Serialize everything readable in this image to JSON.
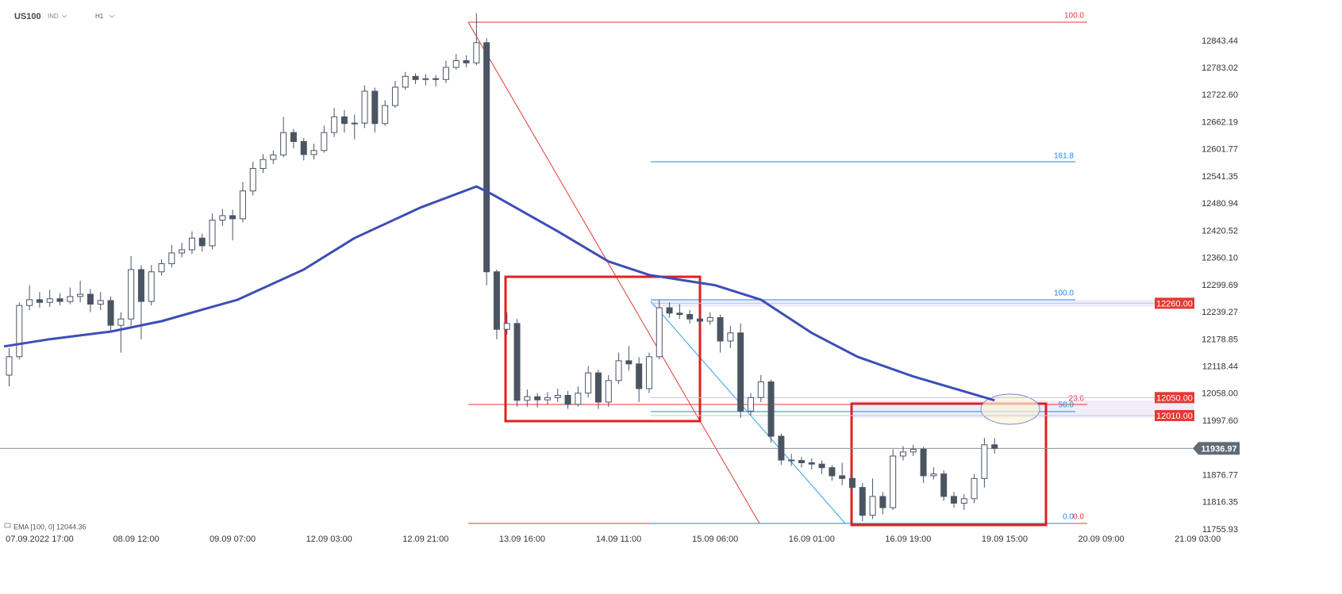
{
  "header": {
    "symbol": "US100",
    "market": "IND",
    "interval": "H1"
  },
  "annotations": {
    "red_fib": [
      "100.0",
      "23.6",
      "0.0"
    ],
    "blue_fib": [
      "161.8",
      "100.0",
      "50.0",
      "0.0"
    ]
  },
  "chart_data": {
    "type": "candlestick",
    "x": [
      -6,
      -4,
      -2,
      0,
      2,
      4,
      6,
      8,
      10,
      12,
      14,
      16,
      18,
      20,
      22,
      24,
      26,
      28,
      30,
      32,
      34,
      36,
      38,
      40,
      42,
      44,
      46,
      48,
      50,
      52,
      54,
      56,
      58,
      60,
      62,
      64,
      66,
      68,
      70,
      72,
      74,
      76,
      78,
      80,
      82,
      84,
      86,
      88,
      90,
      92,
      94,
      96,
      98,
      100,
      102,
      104,
      106,
      108,
      110,
      112,
      114,
      116,
      118,
      120,
      122,
      124,
      126,
      128,
      130,
      132,
      134,
      136,
      138,
      140,
      142,
      144,
      146,
      148,
      150,
      152,
      154,
      156,
      158,
      160,
      162,
      164,
      166,
      168,
      170,
      172,
      174,
      176,
      178,
      180,
      182,
      184,
      186,
      188
    ],
    "open": [
      12100,
      12141,
      12255,
      12268,
      12262,
      12270,
      12264,
      12275,
      12280,
      12258,
      12266,
      12211,
      12225,
      12335,
      12264,
      12330,
      12348,
      12372,
      12379,
      12405,
      12388,
      12445,
      12455,
      12448,
      12510,
      12560,
      12580,
      12590,
      12640,
      12620,
      12591,
      12600,
      12640,
      12675,
      12660,
      12661,
      12732,
      12660,
      12700,
      12741,
      12765,
      12758,
      12760,
      12758,
      12785,
      12800,
      12795,
      12840,
      12330,
      12202,
      12215,
      12044,
      12052,
      12045,
      12050,
      12055,
      12035,
      12060,
      12105,
      12040,
      12088,
      12132,
      12125,
      12070,
      12141,
      12250,
      12238,
      12235,
      12225,
      12220,
      12228,
      12176,
      12194,
      12020,
      12050,
      12085,
      11964,
      11911,
      11910,
      11905,
      11902,
      11894,
      11876,
      11870,
      11850,
      11788,
      11830,
      11805,
      11920,
      11929,
      11935,
      11876,
      11880,
      11830,
      11815,
      11825,
      11870,
      11945
    ],
    "high": [
      12160,
      12262,
      12300,
      12285,
      12290,
      12282,
      12295,
      12310,
      12292,
      12285,
      12275,
      12240,
      12365,
      12345,
      12345,
      12358,
      12390,
      12395,
      12420,
      12415,
      12460,
      12470,
      12468,
      12530,
      12575,
      12592,
      12600,
      12675,
      12648,
      12628,
      12615,
      12655,
      12695,
      12690,
      12680,
      12745,
      12740,
      12712,
      12755,
      12775,
      12772,
      12770,
      12768,
      12800,
      12815,
      12812,
      12905,
      12850,
      12335,
      12240,
      12225,
      12068,
      12060,
      12062,
      12070,
      12065,
      12075,
      12120,
      12112,
      12100,
      12150,
      12165,
      12140,
      12150,
      12268,
      12262,
      12258,
      12245,
      12232,
      12240,
      12235,
      12210,
      12215,
      12060,
      12100,
      12090,
      11970,
      11925,
      11918,
      11915,
      11910,
      11900,
      11905,
      11880,
      11860,
      11870,
      11840,
      11935,
      11942,
      11945,
      11940,
      11895,
      11888,
      11840,
      11835,
      11880,
      11960,
      11960
    ],
    "low": [
      12075,
      12135,
      12245,
      12250,
      12252,
      12255,
      12258,
      12262,
      12240,
      12245,
      12195,
      12150,
      12210,
      12180,
      12255,
      12322,
      12340,
      12362,
      12370,
      12375,
      12380,
      12432,
      12400,
      12440,
      12500,
      12550,
      12570,
      12585,
      12605,
      12578,
      12580,
      12595,
      12630,
      12640,
      12625,
      12650,
      12640,
      12655,
      12695,
      12735,
      12748,
      12745,
      12742,
      12750,
      12780,
      12785,
      12790,
      12300,
      12180,
      12190,
      12030,
      12030,
      12028,
      12035,
      12040,
      12025,
      12030,
      12050,
      12025,
      12030,
      12080,
      12110,
      12040,
      12060,
      12135,
      12228,
      12225,
      12215,
      12210,
      12212,
      12150,
      12160,
      12005,
      12010,
      12040,
      11950,
      11900,
      11898,
      11895,
      11890,
      11880,
      11865,
      11855,
      11840,
      11775,
      11780,
      11790,
      11800,
      11910,
      11920,
      11860,
      11868,
      11820,
      11805,
      11800,
      11815,
      11850,
      11925
    ],
    "close": [
      12141,
      12255,
      12268,
      12262,
      12270,
      12264,
      12275,
      12280,
      12258,
      12266,
      12211,
      12225,
      12335,
      12264,
      12330,
      12348,
      12372,
      12379,
      12405,
      12388,
      12445,
      12455,
      12448,
      12510,
      12560,
      12580,
      12590,
      12640,
      12620,
      12591,
      12600,
      12640,
      12675,
      12660,
      12661,
      12732,
      12660,
      12700,
      12741,
      12765,
      12758,
      12760,
      12758,
      12785,
      12800,
      12795,
      12840,
      12330,
      12202,
      12215,
      12044,
      12052,
      12045,
      12050,
      12055,
      12035,
      12060,
      12105,
      12040,
      12088,
      12132,
      12125,
      12070,
      12141,
      12250,
      12238,
      12235,
      12225,
      12220,
      12228,
      12176,
      12194,
      12020,
      12050,
      12085,
      11964,
      11911,
      11910,
      11905,
      11902,
      11894,
      11876,
      11870,
      11850,
      11788,
      11830,
      11805,
      11920,
      11929,
      11935,
      11876,
      11880,
      11830,
      11815,
      11825,
      11870,
      11945,
      11937
    ],
    "up_color": "#ffffff",
    "down_color": "#4a5563",
    "overlays": [
      {
        "name": "EMA [100, 0] 12044.36",
        "color": "#3d4db7",
        "x": [
          -7,
          2,
          14,
          24,
          39,
          52,
          62,
          75,
          86,
          89,
          102,
          112,
          120,
          133,
          142,
          152,
          161,
          172,
          188
        ],
        "values": [
          12164,
          12180,
          12197,
          12220,
          12268,
          12335,
          12405,
          12473,
          12520,
          12503,
          12420,
          12353,
          12323,
          12300,
          12268,
          12194,
          12141,
          12097,
          12044
        ]
      }
    ],
    "levels": [
      {
        "value": 12260,
        "label": "12260.00"
      },
      {
        "value": 12050,
        "label": "12050.00"
      },
      {
        "value": 12010,
        "label": "12010.00"
      }
    ],
    "level_color": "#e53935",
    "current_price": 11936.97,
    "current_color": "#5f6b76",
    "xlim": [
      -7.8,
      230
    ],
    "xticks": [
      {
        "value": 0,
        "label": "07.09.2022 17:00"
      },
      {
        "value": 19,
        "label": "08.09 12:00"
      },
      {
        "value": 38,
        "label": "09.09 07:00"
      },
      {
        "value": 57,
        "label": "12.09 03:00"
      },
      {
        "value": 76,
        "label": "12.09 21:00"
      },
      {
        "value": 95,
        "label": "13.09 16:00"
      },
      {
        "value": 114,
        "label": "14.09 11:00"
      },
      {
        "value": 133,
        "label": "15.09 06:00"
      },
      {
        "value": 152,
        "label": "16.09 01:00"
      },
      {
        "value": 171,
        "label": "16.09 19:00"
      },
      {
        "value": 190,
        "label": "19.09 15:00"
      },
      {
        "value": 209,
        "label": "20.09 09:00"
      },
      {
        "value": 228,
        "label": "21.09 03:00"
      }
    ],
    "ylim": [
      11717,
      12935
    ],
    "yticks": [
      12843.44,
      12783.02,
      {
        "value": 12722.6,
        "label": "12722.60"
      },
      12662.19,
      12601.77,
      12541.35,
      12480.94,
      12420.52,
      {
        "value": 12360.1,
        "label": "12360.10"
      },
      12299.69,
      12239.27,
      12178.85,
      12118.44,
      {
        "value": 12058,
        "label": "12058.00"
      },
      {
        "value": 11997.6,
        "label": "11997.60"
      },
      11876.77,
      11816.35,
      11755.93
    ],
    "grid": false
  }
}
